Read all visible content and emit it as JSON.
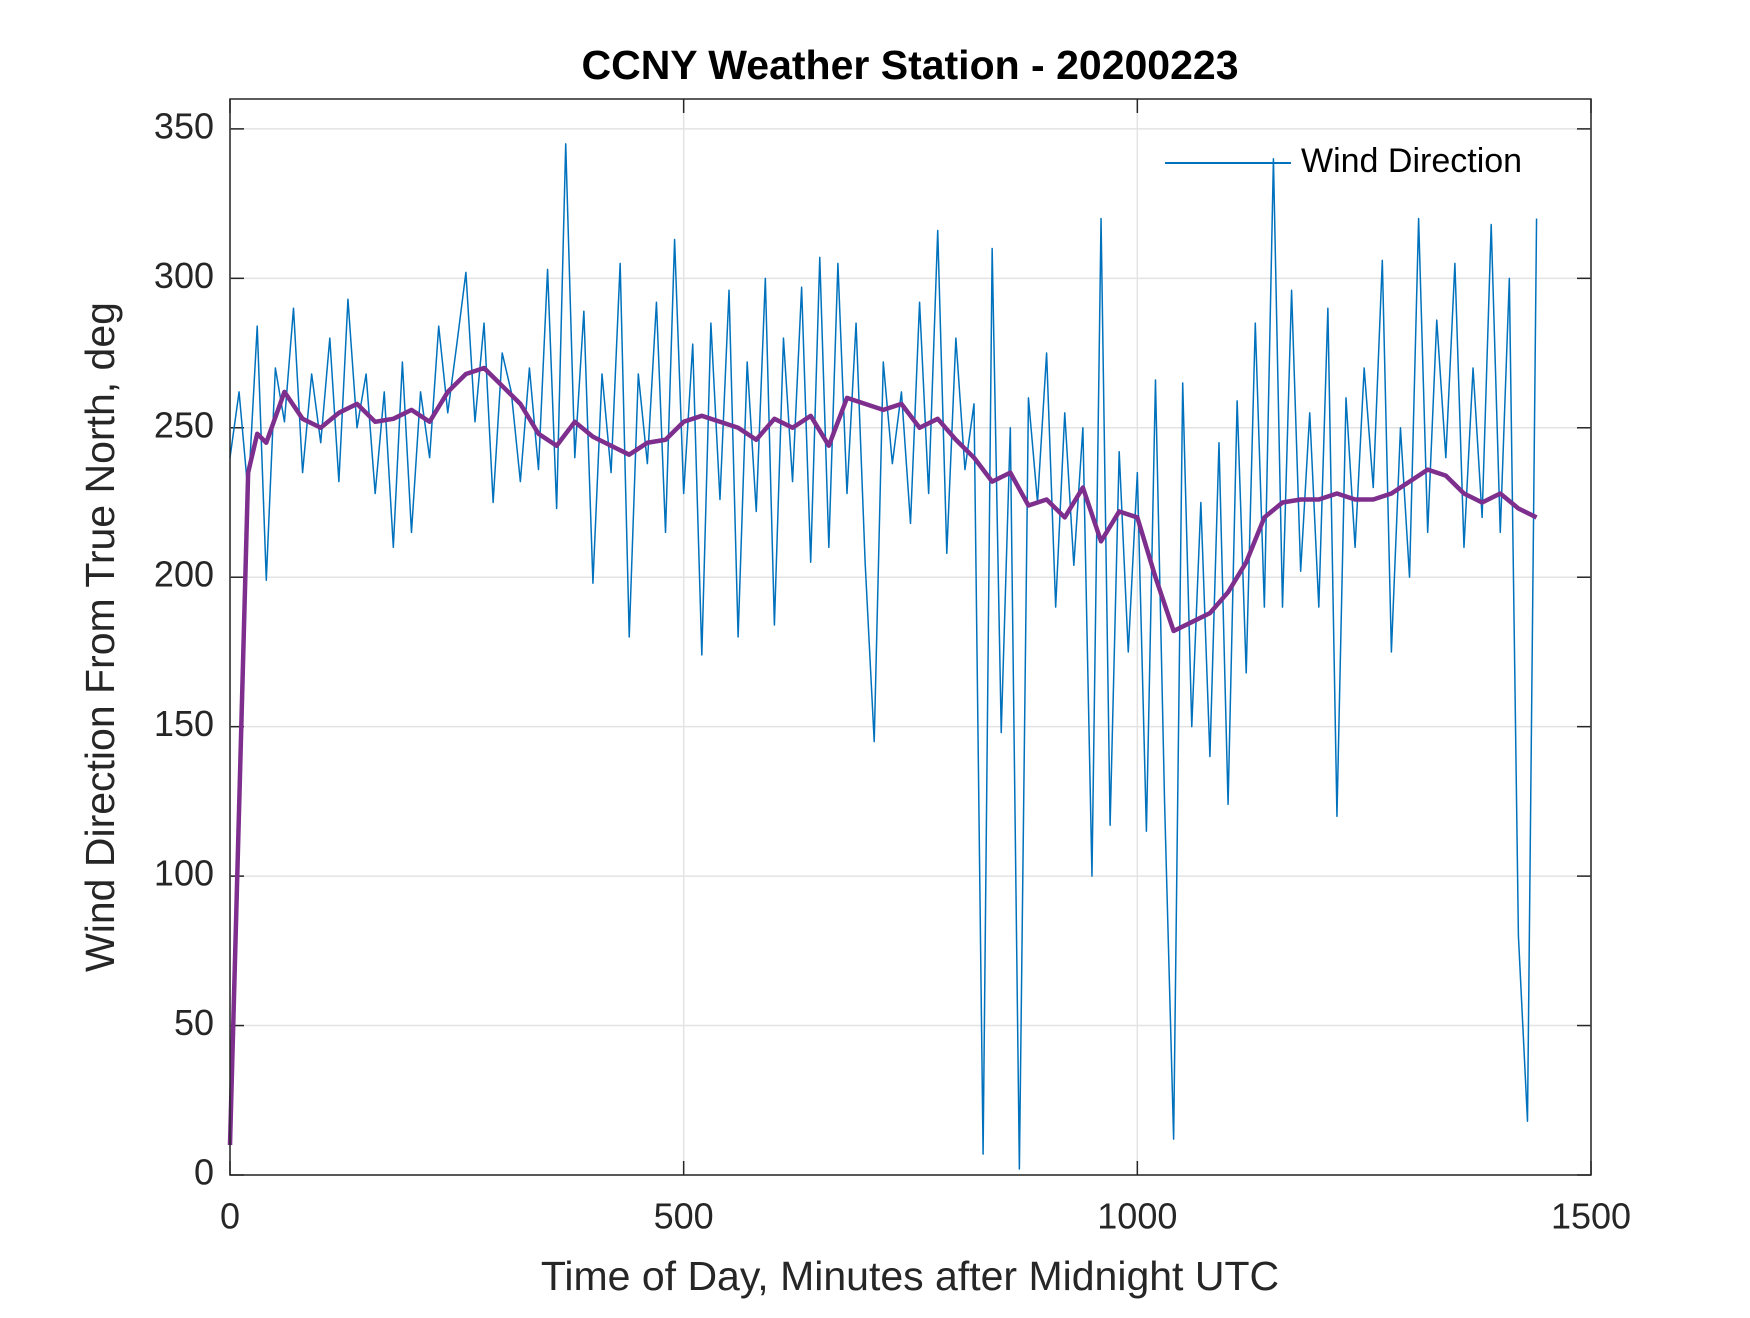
{
  "chart_data": {
    "type": "line",
    "title": "CCNY Weather Station - 20200223",
    "xlabel": "Time of Day, Minutes after Midnight UTC",
    "ylabel": "Wind Direction From True North, deg",
    "xlim": [
      0,
      1500
    ],
    "xticks": [
      0,
      500,
      1000,
      1500
    ],
    "ylim": [
      0,
      360
    ],
    "yticks": [
      0,
      50,
      100,
      150,
      200,
      250,
      300,
      350
    ],
    "grid": true,
    "legend": "upper right",
    "series": [
      {
        "name": "Wind Direction",
        "color": "#0072bd",
        "width": 1.5,
        "x": [
          0,
          10,
          20,
          30,
          40,
          50,
          60,
          70,
          80,
          90,
          100,
          110,
          120,
          130,
          140,
          150,
          160,
          170,
          180,
          190,
          200,
          210,
          220,
          230,
          240,
          250,
          260,
          270,
          280,
          290,
          300,
          310,
          320,
          330,
          340,
          350,
          360,
          370,
          380,
          390,
          400,
          410,
          420,
          430,
          440,
          450,
          460,
          470,
          480,
          490,
          500,
          510,
          520,
          530,
          540,
          550,
          560,
          570,
          580,
          590,
          600,
          610,
          620,
          630,
          640,
          650,
          660,
          670,
          680,
          690,
          700,
          710,
          720,
          730,
          740,
          750,
          760,
          770,
          780,
          790,
          800,
          810,
          820,
          830,
          840,
          850,
          860,
          870,
          880,
          890,
          900,
          910,
          920,
          930,
          940,
          950,
          960,
          970,
          980,
          990,
          1000,
          1010,
          1020,
          1030,
          1040,
          1050,
          1060,
          1070,
          1080,
          1090,
          1100,
          1110,
          1120,
          1130,
          1140,
          1150,
          1160,
          1170,
          1180,
          1190,
          1200,
          1210,
          1220,
          1230,
          1240,
          1250,
          1260,
          1270,
          1280,
          1290,
          1300,
          1310,
          1320,
          1330,
          1340,
          1350,
          1360,
          1370,
          1380,
          1390,
          1400,
          1410,
          1420,
          1430,
          1440
        ],
        "values": [
          240,
          262,
          228,
          284,
          199,
          270,
          252,
          290,
          235,
          268,
          245,
          280,
          232,
          293,
          250,
          268,
          228,
          262,
          210,
          272,
          215,
          262,
          240,
          284,
          255,
          278,
          302,
          252,
          285,
          225,
          275,
          262,
          232,
          270,
          236,
          303,
          223,
          345,
          240,
          289,
          198,
          268,
          235,
          305,
          180,
          268,
          238,
          292,
          215,
          313,
          228,
          278,
          174,
          285,
          226,
          296,
          180,
          272,
          222,
          300,
          184,
          280,
          232,
          297,
          205,
          307,
          210,
          305,
          228,
          285,
          205,
          145,
          272,
          238,
          262,
          218,
          292,
          228,
          316,
          208,
          280,
          236,
          258,
          7,
          310,
          148,
          250,
          2,
          260,
          225,
          275,
          190,
          255,
          204,
          250,
          100,
          320,
          117,
          242,
          175,
          235,
          115,
          266,
          125,
          12,
          265,
          150,
          225,
          140,
          245,
          124,
          259,
          168,
          285,
          190,
          340,
          190,
          296,
          202,
          255,
          190,
          290,
          120,
          260,
          210,
          270,
          230,
          306,
          175,
          250,
          200,
          320,
          215,
          286,
          240,
          305,
          210,
          270,
          220,
          318,
          215,
          300,
          80,
          18,
          320
        ]
      },
      {
        "color": "#7e2f8e",
        "width": 4.5,
        "x": [
          0,
          20,
          30,
          40,
          60,
          80,
          100,
          120,
          140,
          160,
          180,
          200,
          220,
          240,
          260,
          280,
          300,
          320,
          340,
          360,
          380,
          400,
          420,
          440,
          460,
          480,
          500,
          520,
          540,
          560,
          580,
          600,
          620,
          640,
          660,
          680,
          700,
          720,
          740,
          760,
          780,
          800,
          820,
          840,
          860,
          880,
          900,
          920,
          940,
          960,
          980,
          1000,
          1020,
          1040,
          1060,
          1080,
          1100,
          1120,
          1140,
          1160,
          1180,
          1200,
          1220,
          1240,
          1260,
          1280,
          1300,
          1320,
          1340,
          1360,
          1380,
          1400,
          1420,
          1440
        ],
        "values": [
          10,
          235,
          248,
          245,
          262,
          253,
          250,
          255,
          258,
          252,
          253,
          256,
          252,
          262,
          268,
          270,
          264,
          258,
          248,
          244,
          252,
          247,
          244,
          241,
          245,
          246,
          252,
          254,
          252,
          250,
          246,
          253,
          250,
          254,
          244,
          260,
          258,
          256,
          258,
          250,
          253,
          246,
          240,
          232,
          235,
          224,
          226,
          220,
          230,
          212,
          222,
          220,
          200,
          182,
          185,
          188,
          195,
          205,
          220,
          225,
          226,
          226,
          228,
          226,
          226,
          228,
          232,
          236,
          234,
          228,
          225,
          228,
          223,
          220
        ]
      }
    ]
  }
}
